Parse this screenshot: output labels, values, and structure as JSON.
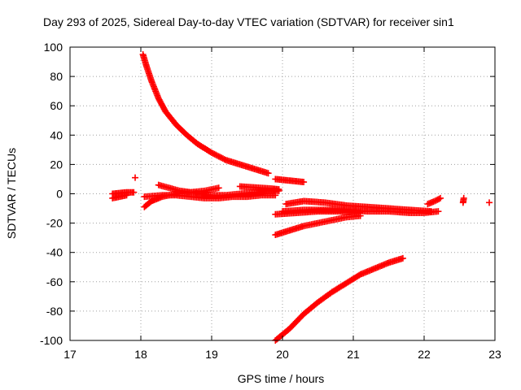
{
  "chart_data": {
    "type": "scatter",
    "title": "Day 293 of 2025, Sidereal Day-to-day VTEC variation (SDTVAR) for receiver sin1",
    "xlabel": "GPS time / hours",
    "ylabel": "SDTVAR / TECUs",
    "xlim": [
      17,
      23
    ],
    "ylim": [
      -100,
      100
    ],
    "xticks": [
      17,
      18,
      19,
      20,
      21,
      22,
      23
    ],
    "yticks": [
      -100,
      -80,
      -60,
      -40,
      -20,
      0,
      20,
      40,
      60,
      80,
      100
    ],
    "grid": true,
    "legend": "none",
    "marker": "plus",
    "color": "#ff0000",
    "series": [
      {
        "x": [
          18.03,
          18.08,
          18.15,
          18.25,
          18.35,
          18.5,
          18.65,
          18.8,
          19.0,
          19.2,
          19.4,
          19.6,
          19.8
        ],
        "y": [
          95,
          87,
          77,
          65,
          56,
          47,
          40,
          34,
          28,
          23,
          20,
          17,
          14
        ]
      },
      {
        "x": [
          19.9,
          20.0,
          20.1,
          20.2,
          20.3
        ],
        "y": [
          10,
          9.5,
          9,
          8.5,
          8
        ]
      },
      {
        "x": [
          19.9,
          20.1,
          20.3,
          20.5,
          20.7,
          20.9,
          21.1,
          21.3,
          21.5,
          21.7
        ],
        "y": [
          -100,
          -92,
          -82,
          -74,
          -67,
          -61,
          -55,
          -51,
          -47,
          -44
        ]
      },
      {
        "x": [
          19.9,
          20.1,
          20.3,
          20.5,
          20.7,
          20.9,
          21.1
        ],
        "y": [
          -28,
          -25,
          -22,
          -20,
          -18,
          -16,
          -15
        ]
      },
      {
        "x": [
          17.6,
          17.7,
          17.8,
          17.9
        ],
        "y": [
          0,
          0.5,
          1,
          1
        ]
      },
      {
        "x": [
          17.6,
          17.7,
          17.8
        ],
        "y": [
          -3,
          -2,
          -1
        ]
      },
      {
        "x": [
          17.92
        ],
        "y": [
          11
        ]
      },
      {
        "x": [
          18.05,
          18.15,
          18.3,
          18.5,
          18.7,
          18.9,
          19.1
        ],
        "y": [
          -9,
          -5,
          -2,
          0,
          1,
          2,
          4
        ]
      },
      {
        "x": [
          18.05,
          18.3,
          18.5,
          18.7,
          18.9,
          19.1,
          19.3,
          19.5,
          19.7,
          19.9
        ],
        "y": [
          -2,
          -1,
          -1,
          -2,
          -3,
          -3,
          -2,
          -2,
          -1,
          -1
        ]
      },
      {
        "x": [
          18.25,
          18.4,
          18.55,
          18.7,
          18.85,
          19.0,
          19.2,
          19.4,
          19.6,
          19.8,
          19.95
        ],
        "y": [
          6,
          4,
          2,
          1,
          0,
          -1,
          -1,
          0,
          1,
          2,
          2
        ]
      },
      {
        "x": [
          19.4,
          19.55,
          19.7,
          19.85,
          19.95
        ],
        "y": [
          5,
          4.5,
          4,
          3.5,
          3
        ]
      },
      {
        "x": [
          20.05,
          20.3,
          20.6,
          20.9,
          21.2,
          21.5,
          21.8,
          22.1
        ],
        "y": [
          -7,
          -5,
          -6,
          -8,
          -9,
          -10,
          -11,
          -12
        ]
      },
      {
        "x": [
          20.0,
          20.3,
          20.6,
          20.9,
          21.2,
          21.5,
          21.8,
          22.0,
          22.2
        ],
        "y": [
          -12,
          -11,
          -11,
          -11,
          -12,
          -12,
          -13,
          -13,
          -12
        ]
      },
      {
        "x": [
          19.9,
          20.2,
          20.5,
          20.8,
          21.1
        ],
        "y": [
          -14,
          -13,
          -12,
          -12,
          -13
        ]
      },
      {
        "x": [
          22.05,
          22.15,
          22.23
        ],
        "y": [
          -7,
          -5,
          -3
        ]
      },
      {
        "x": [
          22.55,
          22.56
        ],
        "y": [
          -6,
          -3
        ]
      },
      {
        "x": [
          22.92
        ],
        "y": [
          -6
        ]
      }
    ]
  }
}
